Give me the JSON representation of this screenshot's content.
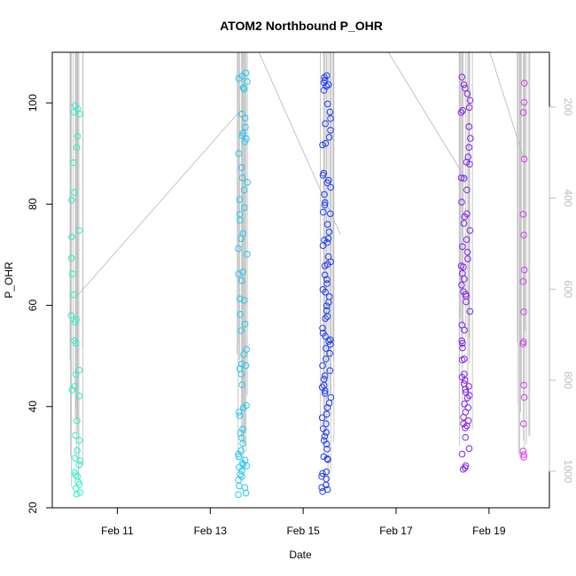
{
  "chart_data": {
    "type": "scatter",
    "title": "ATOM2 Northbound P_OHR",
    "xlabel": "Date",
    "ylabel": "P_OHR",
    "x_ticks": [
      "Feb 11",
      "Feb 13",
      "Feb 15",
      "Feb 17",
      "Feb 19"
    ],
    "x_tick_values": [
      11,
      13,
      15,
      17,
      19
    ],
    "xlim": [
      9.6,
      20.3
    ],
    "ylim": [
      20,
      110
    ],
    "y_ticks": [
      20,
      40,
      60,
      80,
      100
    ],
    "y2_ticks": [
      200,
      400,
      600,
      800,
      1000
    ],
    "y2lim": [
      1080,
      80
    ],
    "y2_reversed": true,
    "grid": false,
    "legend": "none",
    "colors": {
      "marker_cluster_1": "#2cf0c6",
      "marker_cluster_2": "#24c8f0",
      "marker_cluster_3": "#1f3cf0",
      "marker_cluster_4": "#7e22f0",
      "marker_cluster_5": "#d43cf0",
      "trajectory_line": "#bdbdbd",
      "right_axis": "#bdbdbd"
    },
    "clusters": [
      {
        "x": 10.1,
        "values": [
          99.5,
          98.8,
          98.2,
          97.8,
          93.4,
          91.2,
          88.2,
          82.3,
          80.8,
          74.8,
          73.5,
          69.3,
          66.2,
          62.1,
          58.0,
          57.2,
          56.7,
          53.0,
          52.5,
          47.2,
          46.3,
          44.0,
          43.3,
          42.1,
          37.2,
          34.3,
          33.3,
          31.3,
          29.8,
          29.3,
          28.5,
          27.0,
          26.5,
          26.2,
          25.1,
          24.6,
          23.8,
          23.0,
          22.7
        ]
      },
      {
        "x": 13.7,
        "values": [
          105.9,
          105.3,
          104.8,
          104.2,
          103.0,
          102.7,
          97.8,
          97.0,
          95.2,
          94.0,
          93.5,
          92.9,
          92.3,
          90.0,
          87.2,
          85.2,
          84.3,
          82.8,
          80.9,
          79.3,
          78.0,
          76.8,
          74.2,
          73.2,
          71.2,
          70.1,
          66.6,
          66.2,
          64.9,
          61.3,
          61.0,
          58.2,
          56.3,
          55.0,
          51.3,
          50.3,
          48.4,
          48.1,
          47.5,
          46.4,
          44.3,
          40.2,
          39.8,
          38.9,
          38.2,
          35.5,
          34.8,
          33.8,
          32.7,
          31.3,
          30.6,
          30.1,
          29.4,
          28.8,
          28.5,
          28.3,
          28.0,
          27.3,
          26.6,
          26.2,
          25.5,
          24.3,
          24.0,
          22.9,
          22.6
        ]
      },
      {
        "x": 15.5,
        "values": [
          105.4,
          105.0,
          104.5,
          104.0,
          103.6,
          103.3,
          102.5,
          99.8,
          98.2,
          96.9,
          95.9,
          94.6,
          93.2,
          92.0,
          91.7,
          86.1,
          85.7,
          84.7,
          84.2,
          83.3,
          81.9,
          80.3,
          79.8,
          78.4,
          78.1,
          76.0,
          74.5,
          73.2,
          72.9,
          72.4,
          71.8,
          69.6,
          68.6,
          68.1,
          67.8,
          66.0,
          65.1,
          64.3,
          63.1,
          62.6,
          61.7,
          60.6,
          59.9,
          59.0,
          57.8,
          57.4,
          55.5,
          54.5,
          53.9,
          53.2,
          52.9,
          52.3,
          51.5,
          50.5,
          49.4,
          48.1,
          47.1,
          46.1,
          45.4,
          44.2,
          43.8,
          43.1,
          42.6,
          41.8,
          40.7,
          39.8,
          38.5,
          37.8,
          36.6,
          35.6,
          34.9,
          34.1,
          33.3,
          32.6,
          31.6,
          30.1,
          29.7,
          29.5,
          27.1,
          26.8,
          26.2,
          25.7,
          24.5,
          24.0,
          23.6,
          23.2
        ]
      },
      {
        "x": 18.5,
        "values": [
          105.1,
          103.6,
          102.9,
          101.8,
          100.5,
          99.1,
          98.5,
          98.1,
          95.3,
          93.0,
          91.2,
          89.3,
          88.3,
          87.9,
          85.2,
          85.1,
          82.8,
          80.4,
          78.1,
          77.5,
          76.2,
          74.8,
          73.0,
          71.6,
          70.5,
          69.2,
          67.8,
          67.6,
          66.3,
          65.2,
          64.0,
          62.7,
          62.2,
          61.8,
          60.7,
          58.8,
          56.1,
          55.1,
          53.0,
          52.5,
          51.6,
          49.4,
          49.2,
          46.4,
          45.8,
          45.2,
          44.5,
          44.0,
          43.4,
          42.8,
          42.2,
          41.7,
          40.5,
          39.8,
          38.9,
          37.9,
          37.2,
          36.6,
          36.2,
          35.8,
          33.9,
          31.7,
          30.6,
          28.3,
          27.9,
          27.6
        ]
      },
      {
        "x": 19.75,
        "values": [
          103.9,
          100.1,
          98.1,
          88.9,
          78.0,
          73.9,
          67.0,
          64.7,
          58.7,
          52.8,
          52.4,
          44.2,
          41.8,
          36.6,
          31.2,
          30.5,
          30.0
        ]
      }
    ]
  }
}
